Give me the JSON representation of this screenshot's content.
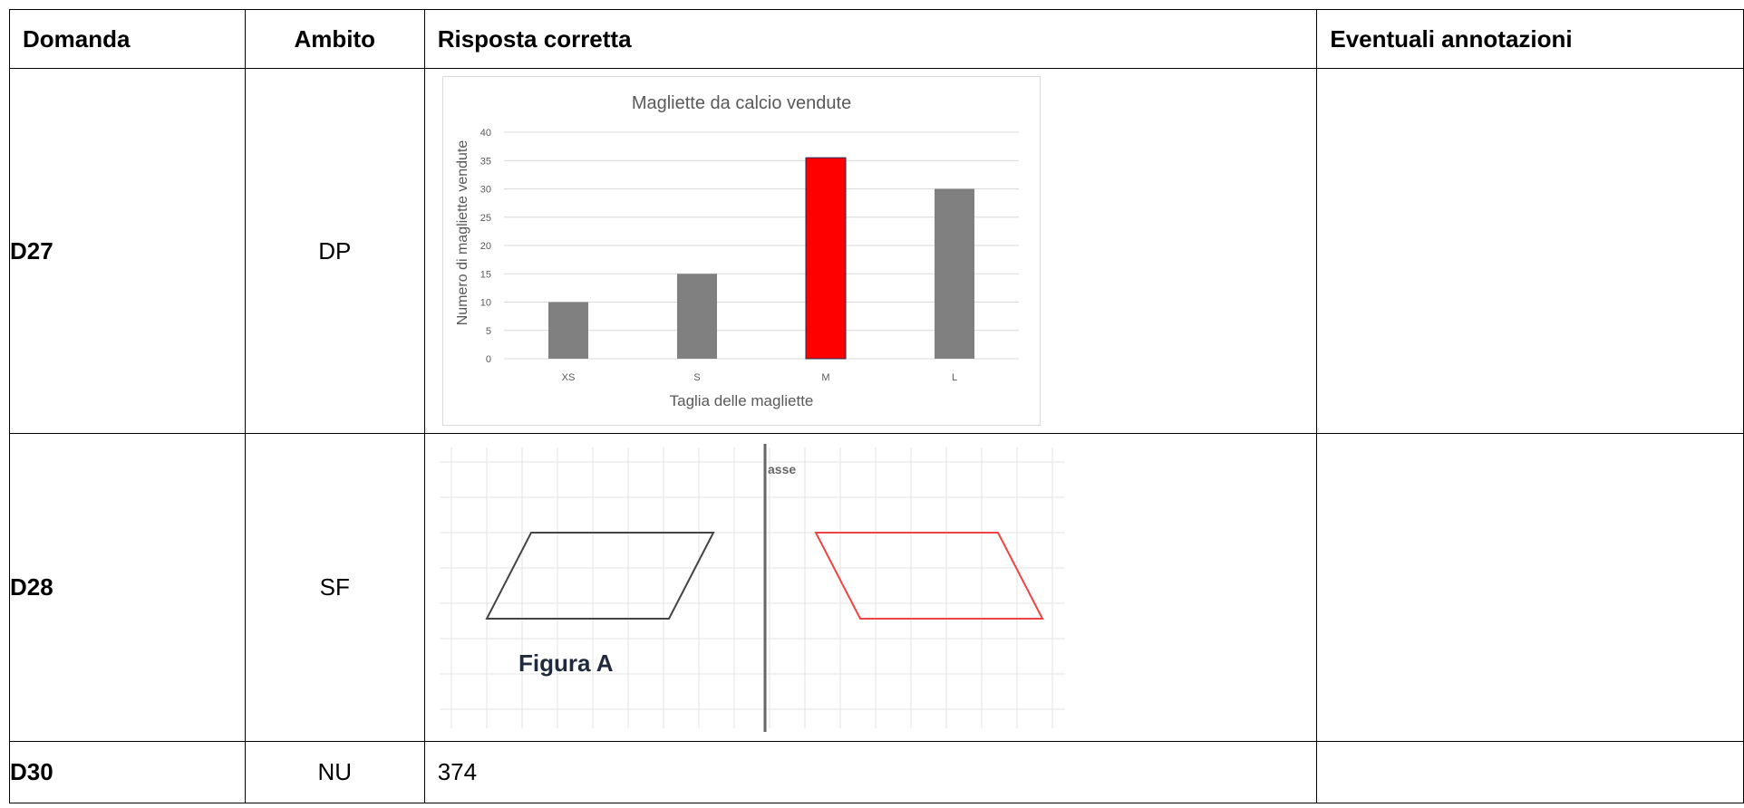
{
  "table": {
    "headers": [
      "Domanda",
      "Ambito",
      "Risposta corretta",
      "Eventuali annotazioni"
    ],
    "rows": [
      {
        "question": "D27",
        "scope": "DP",
        "annotation": ""
      },
      {
        "question": "D28",
        "scope": "SF",
        "annotation": ""
      },
      {
        "question": "D30",
        "scope": "NU",
        "answer_text": "374",
        "annotation": ""
      }
    ]
  },
  "chart_data": {
    "type": "bar",
    "title": "Magliette da calcio vendute",
    "xlabel": "Taglia delle magliette",
    "ylabel": "Numero di magliette vendute",
    "categories": [
      "XS",
      "S",
      "M",
      "L"
    ],
    "values": [
      10,
      15,
      35.5,
      30
    ],
    "bar_colors": [
      "#808080",
      "#808080",
      "#ff0000",
      "#808080"
    ],
    "ylim": [
      0,
      40
    ],
    "yticks": [
      "0",
      "5",
      "10",
      "15",
      "20",
      "25",
      "30",
      "35",
      "40"
    ],
    "grid": true,
    "legend": "none"
  },
  "figure": {
    "axis_label": "asse",
    "figure_label": "Figura A",
    "original_color": "#444444",
    "reflected_color": "#ee4444"
  }
}
